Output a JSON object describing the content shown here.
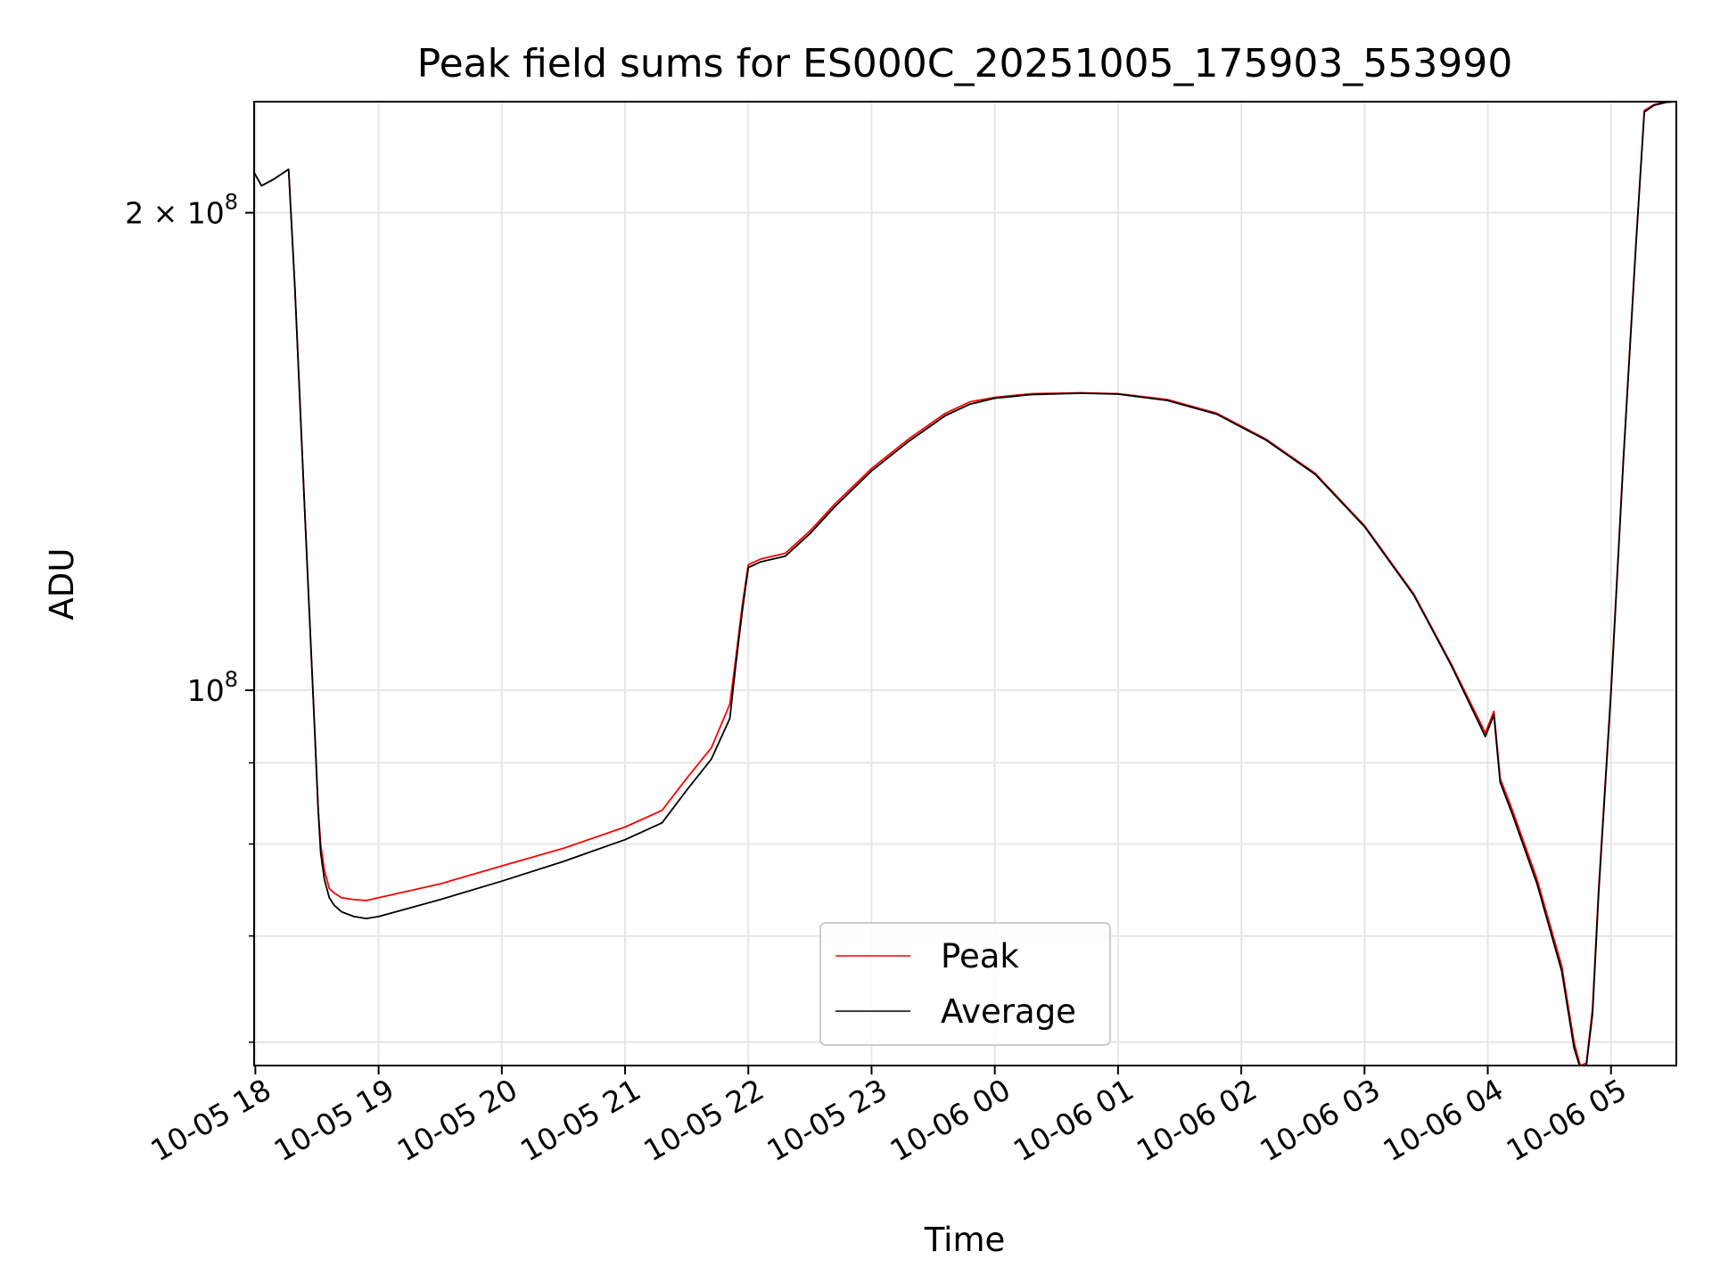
{
  "chart_data": {
    "type": "line",
    "title": "Peak field sums for ES000C_20251005_175903_553990",
    "xlabel": "Time",
    "ylabel": "ADU",
    "yscale": "log",
    "ylim": [
      58000000,
      235000000
    ],
    "xlim": [
      17.99,
      29.53
    ],
    "grid": true,
    "legend_location": "lower-center",
    "x_ticks": [
      {
        "value": 18,
        "label": "10-05 18"
      },
      {
        "value": 19,
        "label": "10-05 19"
      },
      {
        "value": 20,
        "label": "10-05 20"
      },
      {
        "value": 21,
        "label": "10-05 21"
      },
      {
        "value": 22,
        "label": "10-05 22"
      },
      {
        "value": 23,
        "label": "10-05 23"
      },
      {
        "value": 24,
        "label": "10-06 00"
      },
      {
        "value": 25,
        "label": "10-06 01"
      },
      {
        "value": 26,
        "label": "10-06 02"
      },
      {
        "value": 27,
        "label": "10-06 03"
      },
      {
        "value": 28,
        "label": "10-06 04"
      },
      {
        "value": 29,
        "label": "10-06 05"
      }
    ],
    "y_ticks": [
      {
        "value": 100000000,
        "base": "10",
        "exp": "8",
        "prefix": ""
      },
      {
        "value": 200000000,
        "base": "10",
        "exp": "8",
        "prefix": "2 × "
      }
    ],
    "y_minor_ticks": [
      60000000,
      70000000,
      80000000,
      90000000
    ],
    "series": [
      {
        "name": "Peak",
        "color": "#ff0000",
        "x": [
          17.99,
          18.05,
          18.15,
          18.27,
          18.32,
          18.4,
          18.48,
          18.51,
          18.53,
          18.56,
          18.6,
          18.64,
          18.7,
          18.8,
          18.9,
          19.0,
          19.5,
          20.0,
          20.5,
          21.0,
          21.3,
          21.5,
          21.7,
          21.85,
          21.9,
          21.95,
          22.0,
          22.1,
          22.3,
          22.5,
          22.7,
          23.0,
          23.3,
          23.6,
          23.8,
          24.0,
          24.3,
          24.7,
          25.0,
          25.4,
          25.8,
          26.2,
          26.6,
          27.0,
          27.4,
          27.7,
          27.98,
          28.05,
          28.1,
          28.2,
          28.4,
          28.6,
          28.7,
          28.75,
          28.8,
          28.85,
          28.9,
          29.0,
          29.1,
          29.2,
          29.27,
          29.35,
          29.45,
          29.53
        ],
        "y": [
          212000000,
          208000000,
          210000000,
          213000000,
          180000000,
          130000000,
          95000000,
          84000000,
          80000000,
          77000000,
          75000000,
          74500000,
          74000000,
          73800000,
          73700000,
          74000000,
          75500000,
          77500000,
          79500000,
          82000000,
          84000000,
          88000000,
          92000000,
          98000000,
          105000000,
          113000000,
          120000000,
          121000000,
          122000000,
          126000000,
          131000000,
          138000000,
          144000000,
          149500000,
          152000000,
          153000000,
          153800000,
          154000000,
          153800000,
          152500000,
          149500000,
          144000000,
          137000000,
          127000000,
          115000000,
          104000000,
          94000000,
          97000000,
          88000000,
          84000000,
          76000000,
          67000000,
          60000000,
          58000000,
          58200000,
          63000000,
          75000000,
          100000000,
          140000000,
          190000000,
          232000000,
          234000000,
          235000000,
          235000000
        ]
      },
      {
        "name": "Average",
        "color": "#000000",
        "x": [
          17.99,
          18.05,
          18.15,
          18.27,
          18.32,
          18.4,
          18.48,
          18.51,
          18.53,
          18.56,
          18.6,
          18.64,
          18.7,
          18.8,
          18.9,
          19.0,
          19.5,
          20.0,
          20.5,
          21.0,
          21.3,
          21.5,
          21.7,
          21.85,
          21.9,
          21.95,
          22.0,
          22.1,
          22.3,
          22.5,
          22.7,
          23.0,
          23.3,
          23.6,
          23.8,
          24.0,
          24.3,
          24.7,
          25.0,
          25.4,
          25.8,
          26.2,
          26.6,
          27.0,
          27.4,
          27.7,
          27.98,
          28.05,
          28.1,
          28.2,
          28.4,
          28.6,
          28.7,
          28.75,
          28.8,
          28.85,
          28.9,
          29.0,
          29.1,
          29.2,
          29.27,
          29.35,
          29.45,
          29.53
        ],
        "y": [
          212000000,
          208000000,
          210000000,
          213000000,
          180000000,
          130000000,
          95000000,
          84000000,
          79000000,
          76000000,
          74000000,
          73200000,
          72500000,
          72000000,
          71800000,
          72000000,
          73800000,
          75800000,
          78000000,
          80500000,
          82500000,
          86500000,
          90500000,
          96000000,
          104000000,
          112000000,
          119500000,
          120500000,
          121500000,
          125500000,
          130500000,
          137500000,
          143500000,
          149000000,
          151500000,
          152800000,
          153600000,
          153900000,
          153700000,
          152300000,
          149300000,
          143800000,
          136800000,
          126800000,
          114800000,
          103800000,
          93500000,
          96500000,
          87500000,
          83500000,
          75500000,
          66500000,
          59500000,
          57800000,
          58000000,
          62500000,
          74500000,
          99500000,
          139500000,
          189500000,
          231500000,
          233800000,
          234800000,
          235000000
        ]
      }
    ]
  }
}
